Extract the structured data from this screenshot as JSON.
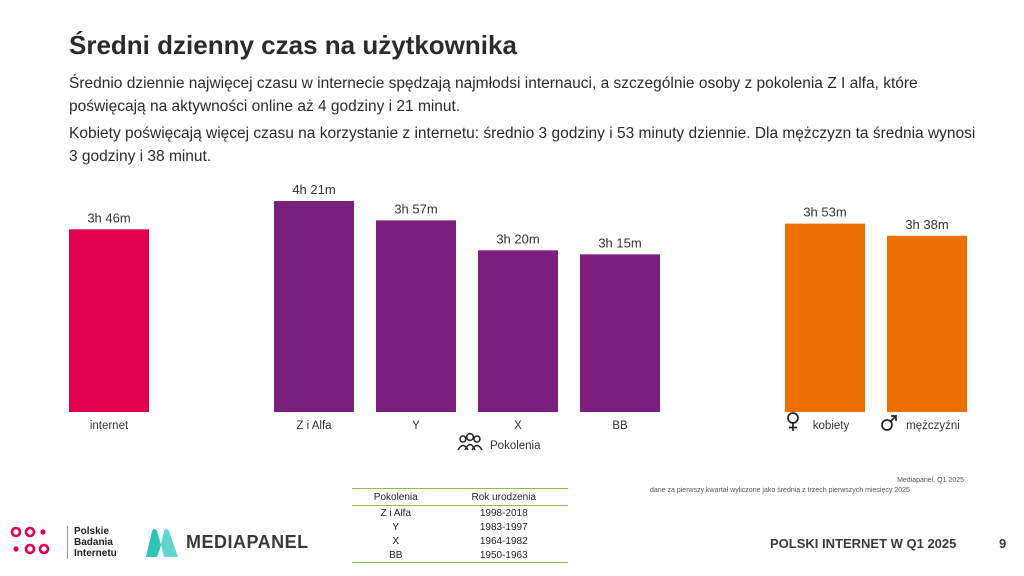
{
  "title": "Średni dzienny czas na użytkownika",
  "paragraph1": "Średnio dziennie najwięcej czasu w internecie spędzają najmłodsi internauci, a szczególnie osoby z pokolenia Z I alfa, które poświęcają na aktywności online aż 4 godziny i 21 minut.",
  "paragraph2": "Kobiety poświęcają więcej czasu na korzystanie z internetu: średnio 3 godziny i 53 minuty dziennie. Dla mężczyzn ta średnia wynosi 3 godziny i 38 minut.",
  "chart_data": {
    "type": "bar",
    "unit": "minutes",
    "ylim": [
      0,
      261
    ],
    "groups": [
      {
        "bars": [
          {
            "category": "internet",
            "value": 226,
            "label": "3h 46m",
            "color": "#e2004f"
          }
        ]
      },
      {
        "label": "Pokolenia",
        "icon": "people-group-icon",
        "bars": [
          {
            "category": "Z i Alfa",
            "value": 261,
            "label": "4h 21m",
            "color": "#7b1f7e"
          },
          {
            "category": "Y",
            "value": 237,
            "label": "3h 57m",
            "color": "#7b1f7e"
          },
          {
            "category": "X",
            "value": 200,
            "label": "3h 20m",
            "color": "#7b1f7e"
          },
          {
            "category": "BB",
            "value": 195,
            "label": "3h 15m",
            "color": "#7b1f7e"
          }
        ]
      },
      {
        "bars": [
          {
            "category": "kobiety",
            "value": 233,
            "label": "3h 53m",
            "color": "#ec6f00",
            "icon": "female-symbol-icon"
          },
          {
            "category": "mężczyźni",
            "value": 218,
            "label": "3h 38m",
            "color": "#ec6f00",
            "icon": "male-symbol-icon"
          }
        ]
      }
    ]
  },
  "source": {
    "line1": "Mediapanel, Q1 2025",
    "line2": "dane za pierwszy kwartał wyliczone jako średnia z trzech pierwszych miesięcy 2025"
  },
  "generations_table": {
    "headers": [
      "Pokolenia",
      "Rok urodzenia"
    ],
    "rows": [
      [
        "Z i Alfa",
        "1998-2018"
      ],
      [
        "Y",
        "1983-1997"
      ],
      [
        "X",
        "1964-1982"
      ],
      [
        "BB",
        "1950-1963"
      ]
    ]
  },
  "footer": {
    "pbi_lines": [
      "Polskie",
      "Badania",
      "Internetu"
    ],
    "mediapanel": "MEDIAPANEL",
    "report_title": "POLSKI INTERNET W Q1 2025",
    "page_number": "9"
  },
  "colors": {
    "pbi_pink": "#e2004f",
    "mediapanel_teal": "#2ec4b6",
    "table_green": "#8cbf3f"
  }
}
